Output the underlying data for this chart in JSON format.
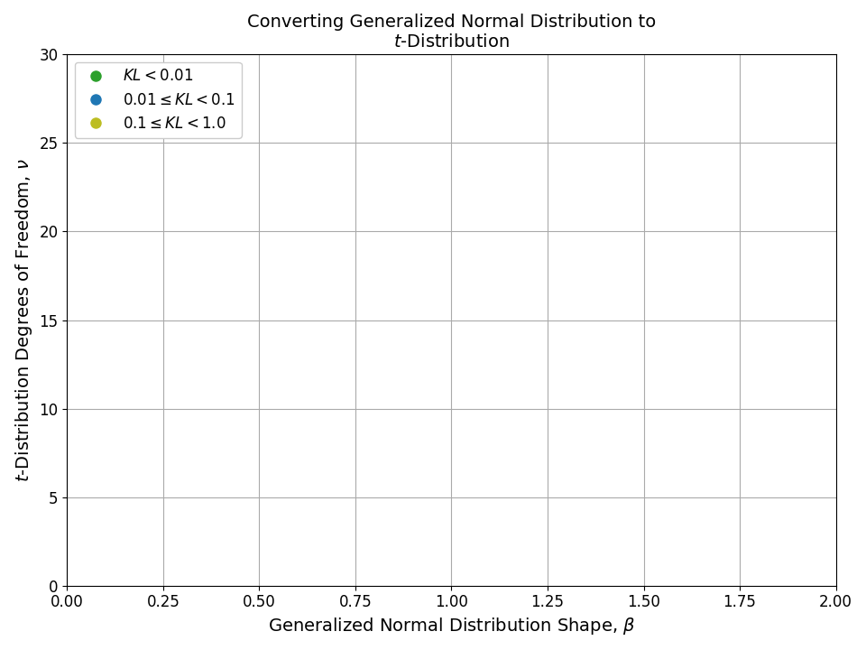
{
  "title_line1": "Converting Generalized Normal Distribution to",
  "title_line2": "$t$-Distribution",
  "xlabel": "Generalized Normal Distribution Shape, $\\beta$",
  "ylabel": "$t$-Distribution Degrees of Freedom, $\\nu$",
  "xlim": [
    0.0,
    2.0
  ],
  "ylim": [
    0,
    30
  ],
  "xticks": [
    0.0,
    0.25,
    0.5,
    0.75,
    1.0,
    1.25,
    1.5,
    1.75,
    2.0
  ],
  "yticks": [
    0,
    5,
    10,
    15,
    20,
    25,
    30
  ],
  "legend": [
    {
      "label": "$KL < 0.01$",
      "color": "#2ca02c"
    },
    {
      "label": "$0.01 \\leq KL < 0.1$",
      "color": "#1f77b4"
    },
    {
      "label": "$0.1 \\leq KL < 1.0$",
      "color": "#bcbd22"
    }
  ],
  "dot_size": 60,
  "line_color": "black",
  "line_width": 2.0,
  "background_color": "white",
  "grid_color": "#aaaaaa"
}
